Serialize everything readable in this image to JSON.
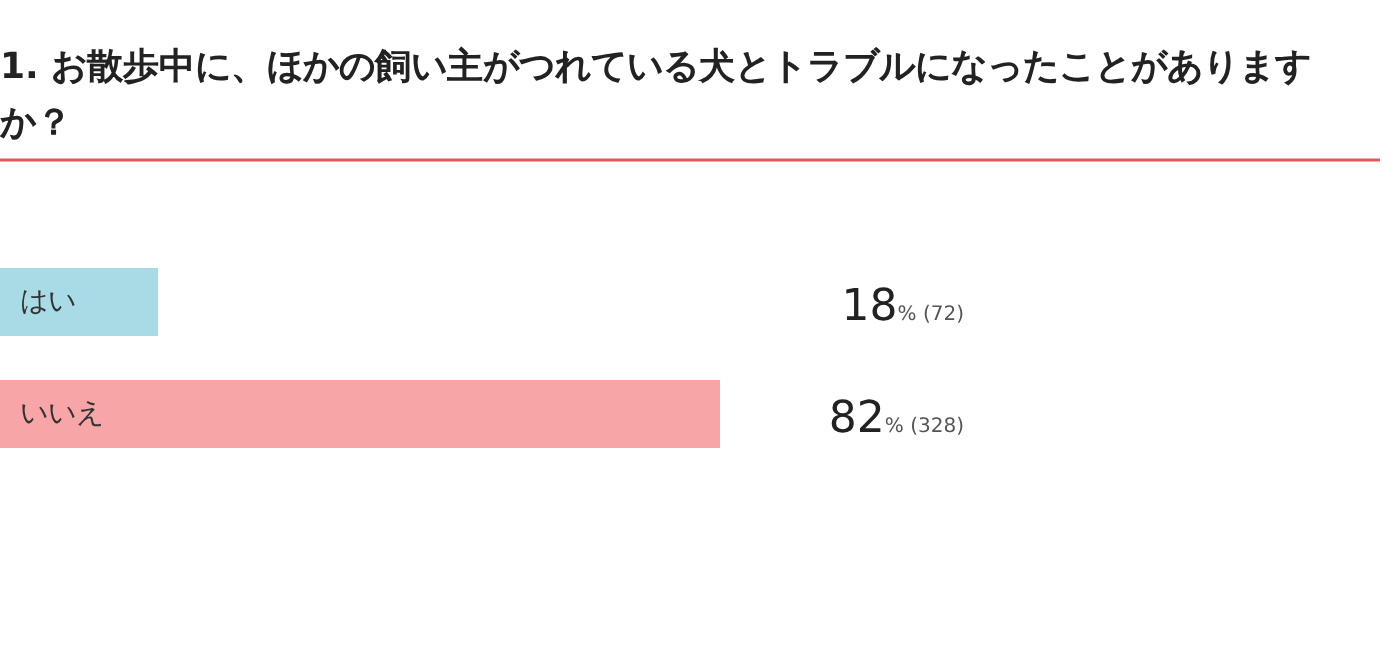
{
  "chart_data": {
    "type": "bar",
    "orientation": "horizontal",
    "title": "1. お散歩中に、ほかの飼い主がつれている犬とトラブルになったことがありますか？",
    "categories": [
      "はい",
      "いいえ"
    ],
    "values": [
      18,
      82
    ],
    "colors": [
      "#a9dbe6",
      "#f8a5a7"
    ],
    "value_labels": [
      "18% (72)",
      "82% (328)"
    ]
  }
}
